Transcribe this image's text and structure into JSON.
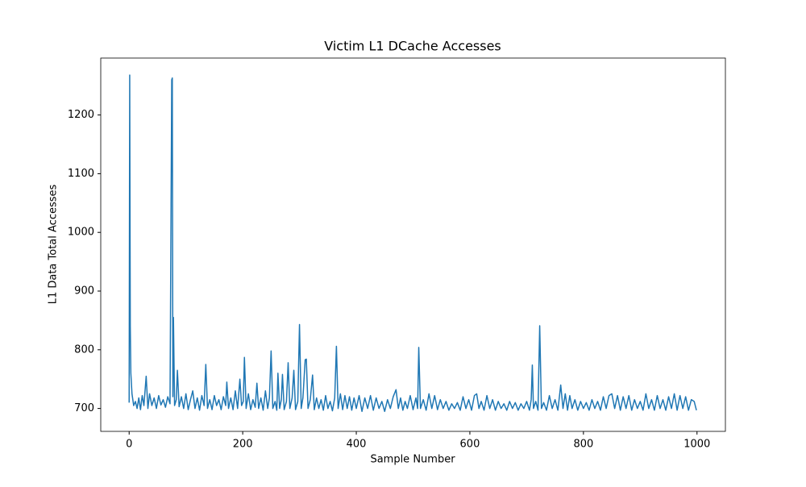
{
  "chart_data": {
    "type": "line",
    "title": "Victim L1 DCache Accesses",
    "xlabel": "Sample Number",
    "ylabel": "L1 Data Total Accesses",
    "x": [
      0,
      1,
      2,
      3,
      5,
      8,
      11,
      14,
      17,
      20,
      23,
      26,
      30,
      33,
      36,
      40,
      44,
      48,
      52,
      56,
      60,
      64,
      68,
      72,
      75,
      76,
      77,
      78,
      80,
      83,
      85,
      88,
      92,
      96,
      100,
      104,
      108,
      112,
      116,
      120,
      124,
      128,
      132,
      135,
      138,
      142,
      146,
      150,
      154,
      158,
      162,
      166,
      170,
      172,
      175,
      179,
      183,
      187,
      191,
      195,
      198,
      201,
      203,
      206,
      210,
      214,
      218,
      222,
      225,
      228,
      232,
      236,
      240,
      244,
      247,
      250,
      253,
      257,
      260,
      262,
      265,
      268,
      270,
      273,
      277,
      280,
      283,
      287,
      290,
      293,
      297,
      300,
      303,
      306,
      310,
      312,
      315,
      319,
      323,
      326,
      330,
      334,
      338,
      342,
      346,
      350,
      354,
      358,
      362,
      365,
      368,
      372,
      376,
      380,
      384,
      388,
      392,
      396,
      400,
      405,
      410,
      415,
      420,
      425,
      430,
      435,
      440,
      445,
      450,
      455,
      460,
      465,
      470,
      474,
      478,
      482,
      486,
      490,
      495,
      500,
      505,
      508,
      510,
      513,
      518,
      523,
      528,
      533,
      538,
      543,
      548,
      553,
      558,
      563,
      568,
      573,
      578,
      583,
      588,
      593,
      598,
      603,
      608,
      612,
      616,
      620,
      625,
      630,
      635,
      640,
      645,
      650,
      655,
      660,
      665,
      670,
      675,
      680,
      685,
      690,
      695,
      700,
      705,
      708,
      710,
      712,
      716,
      720,
      723,
      726,
      730,
      735,
      740,
      745,
      750,
      755,
      760,
      764,
      768,
      772,
      776,
      780,
      785,
      790,
      795,
      800,
      805,
      810,
      815,
      820,
      825,
      830,
      835,
      840,
      845,
      850,
      855,
      860,
      865,
      870,
      875,
      880,
      885,
      890,
      895,
      900,
      905,
      910,
      915,
      920,
      925,
      930,
      935,
      940,
      945,
      950,
      955,
      960,
      965,
      970,
      975,
      980,
      985,
      990,
      995,
      999
    ],
    "series": [
      {
        "color": "#1f77b4",
        "values": [
          710,
          1268,
          840,
          760,
          725,
          705,
          712,
          700,
          718,
          698,
          722,
          705,
          755,
          700,
          725,
          705,
          718,
          700,
          722,
          706,
          715,
          702,
          720,
          708,
          1260,
          1263,
          720,
          855,
          705,
          715,
          765,
          703,
          720,
          700,
          725,
          698,
          715,
          730,
          700,
          718,
          697,
          722,
          705,
          775,
          700,
          715,
          698,
          722,
          705,
          715,
          698,
          720,
          705,
          745,
          700,
          718,
          698,
          730,
          700,
          750,
          705,
          712,
          787,
          700,
          725,
          698,
          715,
          702,
          743,
          700,
          718,
          697,
          730,
          700,
          718,
          798,
          700,
          712,
          697,
          760,
          700,
          715,
          758,
          698,
          712,
          778,
          700,
          718,
          765,
          698,
          712,
          843,
          700,
          718,
          783,
          784,
          700,
          715,
          757,
          698,
          718,
          700,
          715,
          697,
          722,
          700,
          712,
          696,
          718,
          806,
          700,
          725,
          698,
          722,
          700,
          720,
          697,
          718,
          700,
          722,
          695,
          718,
          700,
          722,
          697,
          718,
          700,
          712,
          695,
          715,
          700,
          720,
          732,
          700,
          718,
          697,
          712,
          700,
          722,
          698,
          718,
          700,
          804,
          700,
          715,
          697,
          725,
          700,
          722,
          698,
          715,
          700,
          712,
          697,
          708,
          700,
          710,
          697,
          720,
          700,
          715,
          697,
          722,
          725,
          700,
          712,
          697,
          722,
          700,
          715,
          697,
          712,
          700,
          708,
          697,
          712,
          700,
          710,
          697,
          708,
          700,
          712,
          697,
          715,
          774,
          700,
          712,
          697,
          841,
          700,
          710,
          697,
          722,
          700,
          715,
          697,
          740,
          700,
          725,
          697,
          722,
          700,
          715,
          697,
          712,
          700,
          710,
          697,
          715,
          700,
          712,
          697,
          720,
          700,
          722,
          725,
          700,
          722,
          697,
          720,
          700,
          722,
          697,
          715,
          700,
          712,
          697,
          725,
          700,
          715,
          697,
          722,
          700,
          715,
          697,
          720,
          700,
          725,
          697,
          722,
          700,
          720,
          697,
          715,
          712,
          697
        ]
      }
    ],
    "xlim": [
      -50,
      1050
    ],
    "ylim": [
      661,
      1297
    ],
    "xticks": [
      0,
      200,
      400,
      600,
      800,
      1000
    ],
    "yticks": [
      700,
      800,
      900,
      1000,
      1100,
      1200
    ]
  }
}
